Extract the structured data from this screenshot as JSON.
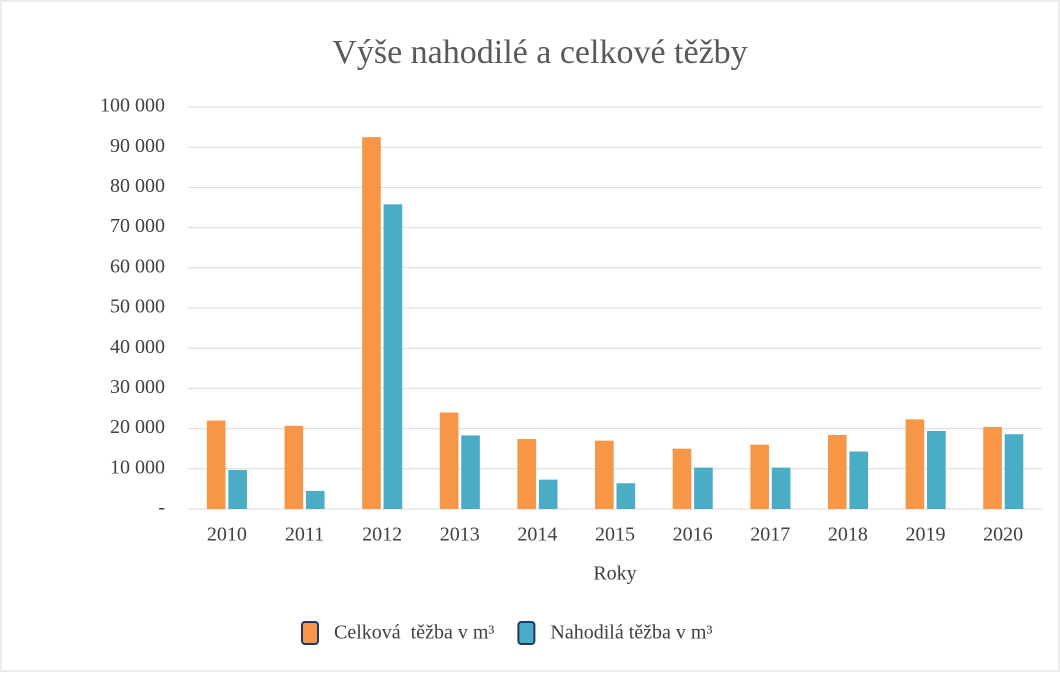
{
  "chart_data": {
    "type": "bar",
    "title": "Výše nahodilé a celkové těžby",
    "x_label": "Roky",
    "categories": [
      "2010",
      "2011",
      "2012",
      "2013",
      "2014",
      "2015",
      "2016",
      "2017",
      "2018",
      "2019",
      "2020"
    ],
    "series": [
      {
        "name": "Celková  těžba v m³",
        "color": "#f79646",
        "values": [
          22000,
          20700,
          92500,
          24000,
          17400,
          17000,
          15000,
          16000,
          18400,
          22300,
          20400
        ]
      },
      {
        "name": "Nahodilá těžba v m³",
        "color": "#4bacc6",
        "values": [
          9700,
          4500,
          75800,
          18300,
          7300,
          6400,
          10300,
          10300,
          14300,
          19400,
          18600
        ]
      }
    ],
    "ylim": [
      0,
      100000
    ],
    "yticks": [
      {
        "value": 0,
        "label": "-"
      },
      {
        "value": 10000,
        "label": "10 000"
      },
      {
        "value": 20000,
        "label": "20 000"
      },
      {
        "value": 30000,
        "label": "30 000"
      },
      {
        "value": 40000,
        "label": "40 000"
      },
      {
        "value": 50000,
        "label": "50 000"
      },
      {
        "value": 60000,
        "label": "60 000"
      },
      {
        "value": 70000,
        "label": "70 000"
      },
      {
        "value": 80000,
        "label": "80 000"
      },
      {
        "value": 90000,
        "label": "90 000"
      },
      {
        "value": 100000,
        "label": "100 000"
      }
    ],
    "grid": true,
    "legend": "bottom"
  }
}
